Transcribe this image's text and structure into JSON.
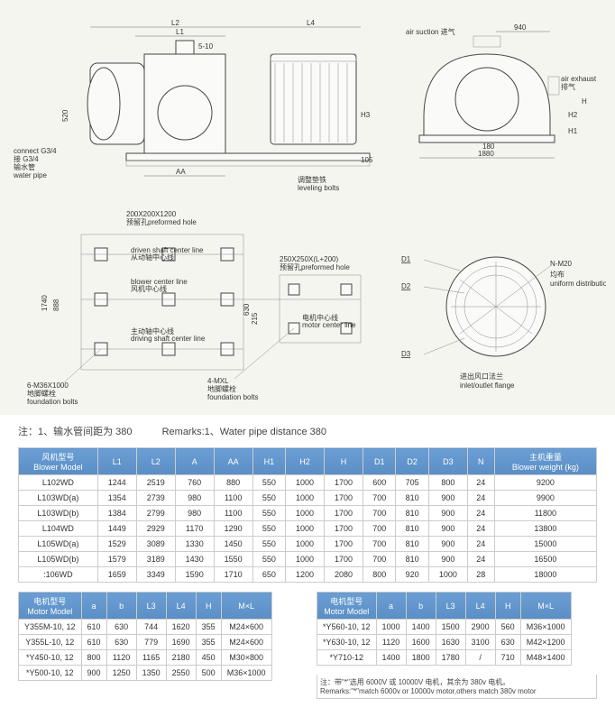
{
  "diagram": {
    "labels": {
      "air_suction": "air suction 进气",
      "air_exhaust": "air exhaust\n排气",
      "connect": "connect G3/4\n接 G3/4\n输水管\nwater pipe",
      "leveling": "调整垫铁\nleveling bolts",
      "preformed_hole1": "200X200X1200\n预留孔preformed hole",
      "driven_shaft": "driven shaft center line\n从动轴中心线",
      "blower_center": "blower center line\n风机中心线",
      "driving_shaft": "主动轴中心线\ndriving shaft center line",
      "preformed_hole2": "250X250X(L+200)\n预留孔preformed hole",
      "motor_center": "电机中心线\nmotor center line",
      "foundation_bolts_l": "6-M36X1000\n地脚螺栓\nfoundation bolts",
      "foundation_bolts_r": "4-MXL\n地脚螺栓\nfoundation bolts",
      "uniform": "N-M20\n均布\nuniform distribution",
      "inlet_outlet": "进出风口法兰\ninlet/outlet flange",
      "L1": "L1",
      "L2": "L2",
      "L4": "L4",
      "AA": "AA",
      "520": "520",
      "510": "5-10",
      "H3": "H3",
      "105": "105",
      "940": "940",
      "180": "180",
      "1880": "1880",
      "H": "H",
      "H1": "H1",
      "H2": "H2",
      "D1": "D1",
      "D2": "D2",
      "D3": "D3",
      "888": "888",
      "1740": "1740",
      "630": "630",
      "215": "215"
    }
  },
  "remarks": {
    "zh": "注：1、输水管间距为 380",
    "en": "Remarks:1、Water pipe distance 380"
  },
  "mainTable": {
    "headers": [
      "风机型号\nBlower Model",
      "L1",
      "L2",
      "A",
      "AA",
      "H1",
      "H2",
      "H",
      "D1",
      "D2",
      "D3",
      "N",
      "主机重量\nBlower weight (kg)"
    ],
    "rows": [
      [
        "L102WD",
        "1244",
        "2519",
        "760",
        "880",
        "550",
        "1000",
        "1700",
        "600",
        "705",
        "800",
        "24",
        "9200"
      ],
      [
        "L103WD(a)",
        "1354",
        "2739",
        "980",
        "1100",
        "550",
        "1000",
        "1700",
        "700",
        "810",
        "900",
        "24",
        "9900"
      ],
      [
        "L103WD(b)",
        "1384",
        "2799",
        "980",
        "1100",
        "550",
        "1000",
        "1700",
        "700",
        "810",
        "900",
        "24",
        "11800"
      ],
      [
        "L104WD",
        "1449",
        "2929",
        "1170",
        "1290",
        "550",
        "1000",
        "1700",
        "700",
        "810",
        "900",
        "24",
        "13800"
      ],
      [
        "L105WD(a)",
        "1529",
        "3089",
        "1330",
        "1450",
        "550",
        "1000",
        "1700",
        "700",
        "810",
        "900",
        "24",
        "15000"
      ],
      [
        "L105WD(b)",
        "1579",
        "3189",
        "1430",
        "1550",
        "550",
        "1000",
        "1700",
        "700",
        "810",
        "900",
        "24",
        "16500"
      ],
      [
        ":106WD",
        "1659",
        "3349",
        "1590",
        "1710",
        "650",
        "1200",
        "2080",
        "800",
        "920",
        "1000",
        "28",
        "18000"
      ]
    ]
  },
  "motorTableLeft": {
    "headers": [
      "电机型号\nMotor Model",
      "a",
      "b",
      "L3",
      "L4",
      "H",
      "M×L"
    ],
    "rows": [
      [
        "Y355M-10, 12",
        "610",
        "630",
        "744",
        "1620",
        "355",
        "M24×600"
      ],
      [
        "Y355L-10, 12",
        "610",
        "630",
        "779",
        "1690",
        "355",
        "M24×600"
      ],
      [
        "*Y450-10, 12",
        "800",
        "1120",
        "1165",
        "2180",
        "450",
        "M30×800"
      ],
      [
        "*Y500-10, 12",
        "900",
        "1250",
        "1350",
        "2550",
        "500",
        "M36×1000"
      ]
    ]
  },
  "motorTableRight": {
    "headers": [
      "电机型号\nMotor Model",
      "a",
      "b",
      "L3",
      "L4",
      "H",
      "M×L"
    ],
    "rows": [
      [
        "*Y560-10, 12",
        "1000",
        "1400",
        "1500",
        "2900",
        "560",
        "M36×1000"
      ],
      [
        "*Y630-10, 12",
        "1120",
        "1600",
        "1630",
        "3100",
        "630",
        "M42×1200"
      ],
      [
        "*Y710-12",
        "1400",
        "1800",
        "1780",
        "/",
        "710",
        "M48×1400"
      ]
    ],
    "footnote": "注：带\"*\"选用 6000V 或 10000V 电机，其余为 380v 电机。\nRemarks:\"*\"match 6000v or 10000v motor,others match 380v motor"
  },
  "colors": {
    "header_bg": "#6a9ed4",
    "border": "#cccccc",
    "diagram_bg": "#f5f5f0"
  }
}
